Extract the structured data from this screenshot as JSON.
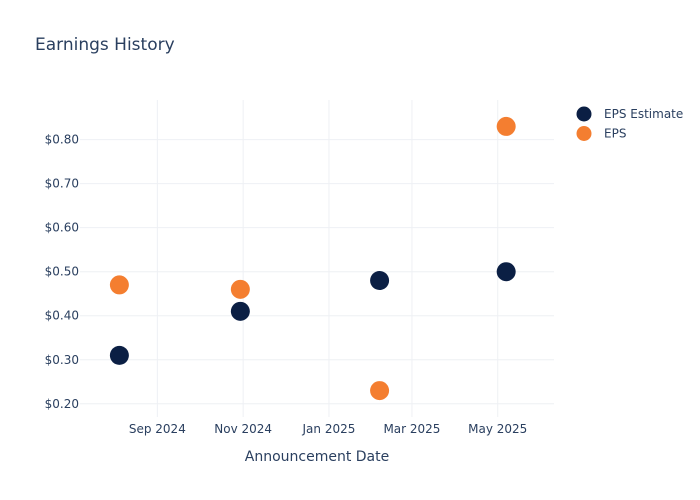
{
  "chart_data": {
    "type": "scatter",
    "title": "Earnings History",
    "xlabel": "Announcement Date",
    "ylabel": "",
    "x_axis": {
      "type": "date",
      "range": [
        "2024-07-08",
        "2025-06-10"
      ],
      "ticks": [
        {
          "date": "2024-09-01",
          "label": "Sep 2024"
        },
        {
          "date": "2024-11-01",
          "label": "Nov 2024"
        },
        {
          "date": "2025-01-01",
          "label": "Jan 2025"
        },
        {
          "date": "2025-03-01",
          "label": "Mar 2025"
        },
        {
          "date": "2025-05-01",
          "label": "May 2025"
        }
      ]
    },
    "y_axis": {
      "range": [
        0.17,
        0.89
      ],
      "ticks": [
        {
          "value": 0.2,
          "label": "$0.20"
        },
        {
          "value": 0.3,
          "label": "$0.30"
        },
        {
          "value": 0.4,
          "label": "$0.40"
        },
        {
          "value": 0.5,
          "label": "$0.50"
        },
        {
          "value": 0.6,
          "label": "$0.60"
        },
        {
          "value": 0.7,
          "label": "$0.70"
        },
        {
          "value": 0.8,
          "label": "$0.80"
        }
      ]
    },
    "grid": true,
    "legend_position": "top-right",
    "series": [
      {
        "name": "EPS Estimate",
        "color": "#0b1f44",
        "points": [
          {
            "x": "2024-08-05",
            "y": 0.31
          },
          {
            "x": "2024-10-30",
            "y": 0.41
          },
          {
            "x": "2025-02-06",
            "y": 0.48
          },
          {
            "x": "2025-05-07",
            "y": 0.5
          }
        ]
      },
      {
        "name": "EPS",
        "color": "#f47e30",
        "points": [
          {
            "x": "2024-08-05",
            "y": 0.47
          },
          {
            "x": "2024-10-30",
            "y": 0.46
          },
          {
            "x": "2025-02-06",
            "y": 0.23
          },
          {
            "x": "2025-05-07",
            "y": 0.83
          }
        ]
      }
    ]
  }
}
